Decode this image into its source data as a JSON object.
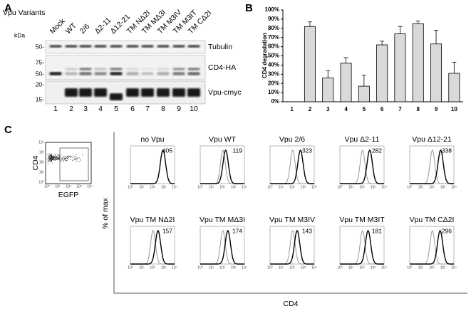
{
  "panel_labels": [
    "A",
    "B",
    "C"
  ],
  "panel_a": {
    "row_label": "Vpu Variants",
    "unit": "kDa",
    "lanes": [
      "Mock",
      "WT",
      "2/6",
      "Δ2-11",
      "Δ12-21",
      "TM NΔ2I",
      "TM MΔ3I",
      "TM M3IV",
      "TM M3IT",
      "TM CΔ2I"
    ],
    "lane_numbers": [
      "1",
      "2",
      "3",
      "4",
      "5",
      "6",
      "7",
      "8",
      "9",
      "10"
    ],
    "markers": [
      "50-",
      "75-",
      "50-",
      "20-",
      "15-"
    ],
    "blots": [
      "Tubulin",
      "CD4-HA",
      "Vpu-cmyc"
    ]
  },
  "chart_data": {
    "type": "bar",
    "y_label": "CD4 degradation",
    "categories": [
      "1",
      "2",
      "3",
      "4",
      "5",
      "6",
      "7",
      "8",
      "9",
      "10"
    ],
    "values": [
      0,
      82,
      26,
      42,
      17,
      62,
      74,
      85,
      63,
      31
    ],
    "errors": [
      0,
      5,
      8,
      6,
      12,
      4,
      8,
      3,
      15,
      12
    ],
    "color": "#d9d9d9",
    "ylim": [
      0,
      100
    ],
    "yticks": [
      {
        "value": 0,
        "label": "0%"
      },
      {
        "value": 10,
        "label": "10%"
      },
      {
        "value": 20,
        "label": "20%"
      },
      {
        "value": 30,
        "label": "30%"
      },
      {
        "value": 40,
        "label": "40%"
      },
      {
        "value": 50,
        "label": "50%"
      },
      {
        "value": 60,
        "label": "60%"
      },
      {
        "value": 70,
        "label": "70%"
      },
      {
        "value": 80,
        "label": "80%"
      },
      {
        "value": 90,
        "label": "90%"
      },
      {
        "value": 100,
        "label": "100%"
      }
    ]
  },
  "panel_c": {
    "dot_plot": {
      "y_label": "CD4",
      "x_label": "EGFP"
    },
    "ticks": [
      "10⁰",
      "10¹",
      "10²",
      "10³",
      "10⁴"
    ],
    "y_label": "% of max",
    "x_label": "CD4",
    "histograms": [
      {
        "title": "no Vpu",
        "mfi": 405
      },
      {
        "title": "Vpu WT",
        "mfi": 119
      },
      {
        "title": "Vpu 2/6",
        "mfi": 323
      },
      {
        "title": "Vpu Δ2-11",
        "mfi": 282
      },
      {
        "title": "Vpu Δ12-21",
        "mfi": 338
      },
      {
        "title": "Vpu TM NΔ2I",
        "mfi": 157
      },
      {
        "title": "Vpu TM MΔ3I",
        "mfi": 174
      },
      {
        "title": "Vpu TM M3IV",
        "mfi": 143
      },
      {
        "title": "Vpu TM M3IT",
        "mfi": 181
      },
      {
        "title": "Vpu TM CΔ2I",
        "mfi": 296
      }
    ]
  }
}
